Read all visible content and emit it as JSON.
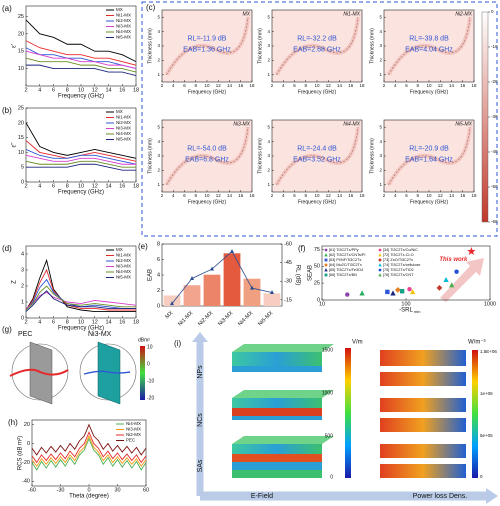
{
  "chart_data": [
    {
      "type": "line",
      "panel_label": "(a)",
      "x_label": "Frequency (GHz)",
      "y_label": "ε'",
      "legend": "upper right",
      "x": [
        2,
        4,
        6,
        8,
        10,
        12,
        14,
        16,
        18
      ],
      "xlim": [
        2,
        18
      ],
      "xticks": [
        2,
        4,
        6,
        8,
        10,
        12,
        14,
        16,
        18
      ],
      "ylim": [
        5,
        28
      ],
      "yticks": [
        10,
        15,
        20,
        25
      ],
      "series": [
        {
          "name": "MX",
          "color": "#000000",
          "values": [
            24,
            20,
            19,
            17,
            17,
            15,
            15,
            14,
            12
          ]
        },
        {
          "name": "Ni1-MX",
          "color": "#e8292b",
          "values": [
            18,
            16,
            15,
            14,
            14,
            13,
            13,
            12,
            11
          ]
        },
        {
          "name": "Ni2-MX",
          "color": "#2f56d4",
          "values": [
            16,
            14,
            14,
            13,
            13,
            12,
            12,
            11,
            10
          ]
        },
        {
          "name": "Ni3-MX",
          "color": "#d63fd0",
          "values": [
            15,
            14,
            13,
            13,
            12,
            12,
            11,
            11,
            10
          ]
        },
        {
          "name": "Ni4-MX",
          "color": "#6b8e23",
          "values": [
            13,
            12,
            12,
            12,
            11,
            11,
            10,
            10,
            9
          ]
        },
        {
          "name": "Ni5-MX",
          "color": "#1a237e",
          "values": [
            11,
            11,
            10,
            10,
            10,
            10,
            9,
            9,
            8
          ]
        }
      ]
    },
    {
      "type": "line",
      "panel_label": "(b)",
      "x_label": "Frequency (GHz)",
      "y_label": "ε''",
      "legend": "upper right",
      "x": [
        2,
        4,
        6,
        8,
        10,
        12,
        14,
        16,
        18
      ],
      "xlim": [
        2,
        18
      ],
      "xticks": [
        2,
        4,
        6,
        8,
        10,
        12,
        14,
        16,
        18
      ],
      "ylim": [
        0,
        25
      ],
      "yticks": [
        0,
        5,
        10,
        15,
        20,
        25
      ],
      "series": [
        {
          "name": "MX",
          "color": "#000000",
          "values": [
            20,
            12,
            10,
            9,
            10,
            11,
            10,
            9,
            8
          ]
        },
        {
          "name": "Ni1-MX",
          "color": "#e8292b",
          "values": [
            14,
            10,
            9,
            8,
            9,
            10,
            9,
            8,
            7
          ]
        },
        {
          "name": "Ni2-MX",
          "color": "#2f56d4",
          "values": [
            11,
            9,
            8,
            8,
            9,
            9,
            8,
            7,
            6
          ]
        },
        {
          "name": "Ni3-MX",
          "color": "#d63fd0",
          "values": [
            9,
            8,
            7,
            7,
            8,
            8,
            7,
            6,
            6
          ]
        },
        {
          "name": "Ni4-MX",
          "color": "#6b8e23",
          "values": [
            7,
            6,
            6,
            6,
            7,
            7,
            6,
            5,
            5
          ]
        },
        {
          "name": "Ni5-MX",
          "color": "#1a237e",
          "values": [
            5,
            5,
            5,
            5,
            6,
            6,
            5,
            4,
            4
          ]
        }
      ]
    },
    {
      "type": "heatmap",
      "title": "MX",
      "rl": "RL=-11.9 dB",
      "eab": "EAB=1.36 GHz",
      "x_label": "Frequency (GHz)",
      "y_label": "Thickness (mm)",
      "xlim": [
        2,
        18
      ],
      "xticks": [
        2,
        4,
        6,
        8,
        10,
        12,
        14,
        16,
        18
      ],
      "ylim": [
        0.5,
        5.5
      ],
      "yticks": [
        1,
        2,
        3,
        4,
        5
      ]
    },
    {
      "type": "heatmap",
      "title": "Ni1-MX",
      "rl": "RL=-32.2 dB",
      "eab": "EAB=2.68 GHz",
      "x_label": "Frequency (GHz)",
      "y_label": "Thickness (mm)",
      "xlim": [
        2,
        18
      ],
      "xticks": [
        2,
        4,
        6,
        8,
        10,
        12,
        14,
        16,
        18
      ],
      "ylim": [
        0.5,
        5.5
      ],
      "yticks": [
        1,
        2,
        3,
        4,
        5
      ]
    },
    {
      "type": "heatmap",
      "title": "Ni2-MX",
      "rl": "RL=-39.8 dB",
      "eab": "EAB=4.04 GHz",
      "x_label": "Frequency (GHz)",
      "y_label": "Thickness (mm)",
      "xlim": [
        2,
        18
      ],
      "xticks": [
        2,
        4,
        6,
        8,
        10,
        12,
        14,
        16,
        18
      ],
      "ylim": [
        0.5,
        5.5
      ],
      "yticks": [
        1,
        2,
        3,
        4,
        5
      ]
    },
    {
      "type": "heatmap",
      "title": "Ni3-MX",
      "rl": "RL=-54.0 dB",
      "eab": "EAB=6.8 GHz",
      "x_label": "Frequency (GHz)",
      "y_label": "Thickness (mm)",
      "xlim": [
        2,
        18
      ],
      "xticks": [
        2,
        4,
        6,
        8,
        10,
        12,
        14,
        16,
        18
      ],
      "ylim": [
        0.5,
        5.5
      ],
      "yticks": [
        1,
        2,
        3,
        4,
        5
      ]
    },
    {
      "type": "heatmap",
      "title": "Ni4-MX",
      "rl": "RL=-24.4 dB",
      "eab": "EAB=3.52 GHz",
      "x_label": "Frequency (GHz)",
      "y_label": "Thickness (mm)",
      "xlim": [
        2,
        18
      ],
      "xticks": [
        2,
        4,
        6,
        8,
        10,
        12,
        14,
        16,
        18
      ],
      "ylim": [
        0.5,
        5.5
      ],
      "yticks": [
        1,
        2,
        3,
        4,
        5
      ]
    },
    {
      "type": "heatmap",
      "title": "Ni5-MX",
      "rl": "RL=-20.9 dB",
      "eab": "EAB=1.64 GHz",
      "x_label": "Frequency (GHz)",
      "y_label": "Thickness (mm)",
      "xlim": [
        2,
        18
      ],
      "xticks": [
        2,
        4,
        6,
        8,
        10,
        12,
        14,
        16,
        18
      ],
      "ylim": [
        0.5,
        5.5
      ],
      "yticks": [
        1,
        2,
        3,
        4,
        5
      ]
    },
    {
      "type": "colorbar",
      "panel_label": "(c)",
      "colors": [
        "#c0392b",
        "#ffffff"
      ],
      "ylim": [
        -60,
        0
      ],
      "yticks": [
        0,
        -10,
        -20,
        -30,
        -40,
        -50,
        -60
      ]
    },
    {
      "type": "line",
      "panel_label": "(d)",
      "x_label": "Frequency (GHz)",
      "y_label": "Z",
      "legend": "upper right",
      "x": [
        2,
        3,
        4,
        5,
        6,
        8,
        10,
        12,
        14,
        16,
        18
      ],
      "xlim": [
        2,
        18
      ],
      "xticks": [
        2,
        4,
        6,
        8,
        10,
        12,
        14,
        16,
        18
      ],
      "ylim": [
        0,
        4.5
      ],
      "yticks": [
        0,
        1,
        2,
        3,
        4
      ],
      "series": [
        {
          "name": "MX",
          "color": "#000000",
          "values": [
            0.5,
            1.2,
            2.5,
            3.6,
            1.8,
            0.7,
            0.5,
            0.4,
            0.4,
            0.4,
            0.4
          ]
        },
        {
          "name": "Ni1-MX",
          "color": "#e8292b",
          "values": [
            0.5,
            1.1,
            2.2,
            3.0,
            1.7,
            0.8,
            0.6,
            0.6,
            0.5,
            0.5,
            0.5
          ]
        },
        {
          "name": "Ni2-MX",
          "color": "#2f56d4",
          "values": [
            0.5,
            1.0,
            1.9,
            2.4,
            1.6,
            0.9,
            0.7,
            0.8,
            0.7,
            0.6,
            0.6
          ]
        },
        {
          "name": "Ni3-MX",
          "color": "#d63fd0",
          "values": [
            0.6,
            0.9,
            1.4,
            1.6,
            1.3,
            1.0,
            0.9,
            1.1,
            1.0,
            0.9,
            0.8
          ]
        },
        {
          "name": "Ni4-MX",
          "color": "#6b8e23",
          "values": [
            0.5,
            0.9,
            1.6,
            2.0,
            1.5,
            0.9,
            0.8,
            0.9,
            0.8,
            0.7,
            0.7
          ]
        },
        {
          "name": "Ni5-MX",
          "color": "#1a237e",
          "values": [
            0.4,
            0.8,
            1.3,
            1.7,
            1.2,
            0.8,
            0.7,
            0.7,
            0.6,
            0.6,
            0.6
          ]
        }
      ]
    },
    {
      "type": "bar",
      "panel_label": "(e)",
      "y_label": "EAB",
      "y2_label": "RL (dB)",
      "categories": [
        "MX",
        "Ni1-MX",
        "Ni2-MX",
        "Ni3-MX",
        "Ni4-MX",
        "Ni5-MX"
      ],
      "ylim": [
        0,
        8
      ],
      "yticks": [
        0,
        2,
        4,
        6,
        8
      ],
      "y2lim": [
        -10,
        -60
      ],
      "y2ticks": [
        -60,
        -45,
        -30,
        -15
      ],
      "series": [
        {
          "colors": [
            "#f7cdbf",
            "#f2a58e",
            "#ec8567",
            "#e35a3f",
            "#f0a080",
            "#f7cdbf"
          ],
          "values": [
            1.36,
            2.68,
            4.04,
            6.8,
            3.52,
            1.64
          ]
        },
        {
          "axis": "y2",
          "color": "#2a4d8f",
          "values": [
            -11.9,
            -32.2,
            -39.8,
            -54.0,
            -24.4,
            -20.9
          ]
        }
      ]
    },
    {
      "type": "scatter",
      "panel_label": "(f)",
      "x_label": "-SRL",
      "x_label_sub": "min",
      "y_label": "SEAB",
      "annotation": "This work",
      "xlog": true,
      "xlim": [
        10,
        1000
      ],
      "xticks": [
        10,
        100,
        1000
      ],
      "ylim": [
        0,
        80
      ],
      "yticks": [
        0,
        25,
        50,
        75
      ],
      "series": [
        {
          "name": "[61] Ti3C2Tx/PPy",
          "color": "#8e44ad",
          "marker": "circle",
          "x": [
            20
          ],
          "values": [
            8
          ]
        },
        {
          "name": "[62] Ti3C2Tx/CNTs/Pi",
          "color": "#27ae60",
          "marker": "triangle",
          "x": [
            30
          ],
          "values": [
            10
          ]
        },
        {
          "name": "[63] PI/NF/Ti3C2Tx",
          "color": "#2f56d4",
          "marker": "square",
          "x": [
            60
          ],
          "values": [
            12
          ]
        },
        {
          "name": "[64] Mo2C/Ti3C2Tx",
          "color": "#e67e22",
          "marker": "diamond",
          "x": [
            80
          ],
          "values": [
            15
          ]
        },
        {
          "name": "[65] Ti3C2Tx/Fe3O4",
          "color": "#1a237e",
          "marker": "triangle",
          "x": [
            70
          ],
          "values": [
            10
          ]
        },
        {
          "name": "[66] Ti3C2Tx/BN",
          "color": "#16a085",
          "marker": "square",
          "x": [
            90
          ],
          "values": [
            13
          ]
        },
        {
          "name": "[34] Ti3C2Tx/Co/NiC",
          "color": "#e84393",
          "marker": "circle",
          "x": [
            110
          ],
          "values": [
            16
          ]
        },
        {
          "name": "[72] Ti3C2Tx-Cl-O",
          "color": "#f1c40f",
          "marker": "triangle",
          "x": [
            120
          ],
          "values": [
            12
          ]
        },
        {
          "name": "[73] ZnO/Ti3C2Tx",
          "color": "#c0392b",
          "marker": "diamond",
          "x": [
            250
          ],
          "values": [
            18
          ]
        },
        {
          "name": "[74] Ti3C2Tx/cellulose",
          "color": "#00bcd4",
          "marker": "triangle",
          "x": [
            300
          ],
          "values": [
            30
          ]
        },
        {
          "name": "[75] Ti3C2Tx/TiO2",
          "color": "#1f4fd6",
          "marker": "circle",
          "x": [
            400
          ],
          "values": [
            42
          ]
        },
        {
          "name": "[76] Ti3C2Tx/CNT",
          "color": "#4caf50",
          "marker": "triangle",
          "x": [
            350
          ],
          "values": [
            22
          ]
        },
        {
          "color": "#e8292b",
          "marker": "star",
          "x": [
            600
          ],
          "values": [
            72
          ]
        }
      ]
    },
    {
      "type": "line",
      "panel_label": "(h)",
      "x_label": "Theta (degree)",
      "y_label": "RCS (dB m²)",
      "legend": "upper right",
      "x": [
        -60,
        -55,
        -50,
        -45,
        -40,
        -35,
        -30,
        -25,
        -20,
        -15,
        -10,
        -5,
        0,
        5,
        10,
        15,
        20,
        25,
        30,
        35,
        40,
        45,
        50,
        55,
        60
      ],
      "xlim": [
        -60,
        60
      ],
      "xticks": [
        -60,
        -30,
        0,
        30,
        60
      ],
      "ylim": [
        -45,
        25
      ],
      "yticks": [
        -40,
        -20,
        0,
        20
      ],
      "series": [
        {
          "name": "Ni4-MX",
          "color": "#4caf50",
          "values": [
            -20,
            -28,
            -19,
            -26,
            -18,
            -25,
            -17,
            -24,
            -15,
            -22,
            -12,
            -7,
            5,
            -7,
            -12,
            -22,
            -15,
            -24,
            -17,
            -25,
            -18,
            -26,
            -19,
            -28,
            -20
          ]
        },
        {
          "name": "Ni3-MX",
          "color": "#f39c12",
          "values": [
            -17,
            -24,
            -16,
            -22,
            -15,
            -21,
            -14,
            -20,
            -12,
            -18,
            -9,
            -4,
            8,
            -4,
            -9,
            -18,
            -12,
            -20,
            -14,
            -21,
            -15,
            -22,
            -16,
            -24,
            -17
          ]
        },
        {
          "name": "Ni2-MX",
          "color": "#e8292b",
          "values": [
            -13,
            -20,
            -12,
            -18,
            -11,
            -17,
            -10,
            -16,
            -8,
            -14,
            -5,
            0,
            12,
            0,
            -5,
            -14,
            -8,
            -16,
            -10,
            -17,
            -11,
            -18,
            -12,
            -20,
            -13
          ]
        },
        {
          "name": "PEC",
          "color": "#7b1010",
          "values": [
            -5,
            -12,
            -4,
            -10,
            -3,
            -9,
            -2,
            -8,
            0,
            -6,
            3,
            8,
            20,
            8,
            3,
            -6,
            0,
            -8,
            -2,
            -9,
            -3,
            -10,
            -4,
            -12,
            -5
          ]
        }
      ]
    }
  ],
  "figure": {
    "g": {
      "panel_label": "(g)",
      "left_title": "PEC",
      "right_title": "Ni3-MX",
      "colorbar_unit": "dBm²",
      "colorbar_ticks": [
        "10",
        "0",
        "-10",
        "-20"
      ]
    },
    "i": {
      "panel_label": "(i)",
      "rows": [
        "NPs",
        "NCs",
        "SAs"
      ],
      "x_label_left": "E-Field",
      "x_label_right": "Power loss Dens.",
      "e_unit": "V/m",
      "e_ticks": [
        "1500",
        "1000",
        "500",
        "0"
      ],
      "p_unit": "W/m⁻³",
      "p_ticks": [
        "1.5E+06",
        "1e+06",
        "5e+05",
        "0"
      ]
    }
  }
}
